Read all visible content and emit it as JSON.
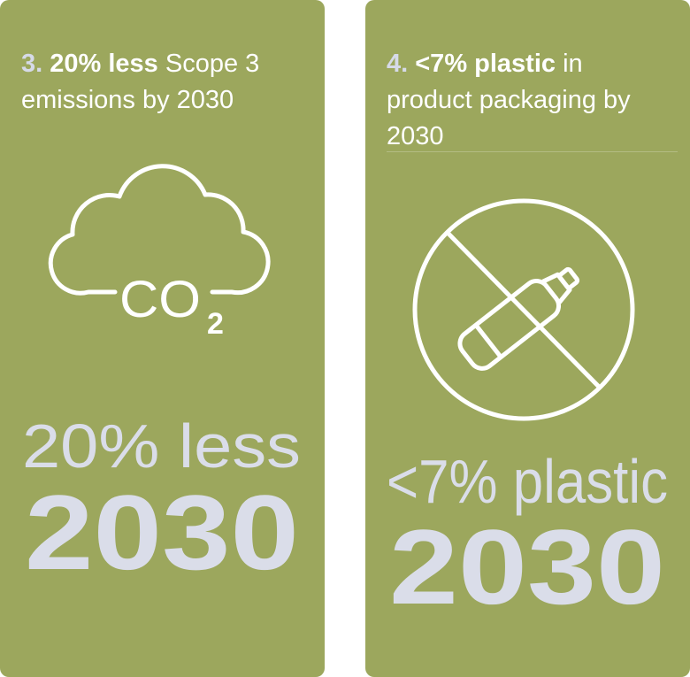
{
  "cards": [
    {
      "number": "3.",
      "bold": "20% less",
      "rest": "Scope 3 emissions by 2030",
      "icon_text": "CO",
      "icon_sub": "2",
      "big_label": "20% less",
      "big_year": "2030"
    },
    {
      "number": "4.",
      "bold": "<7% plastic",
      "rest": "in product packaging by 2030",
      "big_label": "<7% plastic",
      "big_year": "2030"
    }
  ]
}
